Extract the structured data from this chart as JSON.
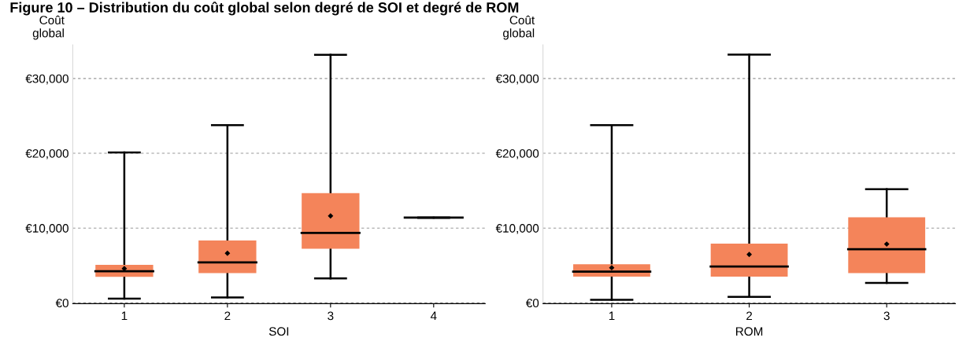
{
  "chart_data": [
    {
      "type": "box",
      "title": "Figure 10 – Distribution du coût global selon degré de SOI et degré de ROM",
      "xlabel": "SOI",
      "ylabel": "Coût\nglobal",
      "categories": [
        "1",
        "2",
        "3",
        "4"
      ],
      "colors": [
        "#f4845a",
        "#f4845a",
        "#f4845a",
        "#000000"
      ],
      "ylim": [
        -100,
        34500
      ],
      "yticks": [
        {
          "value": 0,
          "label": "€0"
        },
        {
          "value": 10000,
          "label": "€10,000"
        },
        {
          "value": 20000,
          "label": "€20,000"
        },
        {
          "value": 30000,
          "label": "€30,000"
        }
      ],
      "grid": "y",
      "marker": "diamond",
      "boxes": [
        {
          "low": 570,
          "q1": 3480,
          "median": 4240,
          "q3": 5080,
          "high": 20100,
          "mean": 4580
        },
        {
          "low": 720,
          "q1": 3980,
          "median": 5420,
          "q3": 8330,
          "high": 23750,
          "mean": 6630
        },
        {
          "low": 3260,
          "q1": 7230,
          "median": 9360,
          "q3": 14660,
          "high": 33180,
          "mean": 11630
        },
        {
          "low": 11400,
          "q1": 11400,
          "median": 11400,
          "q3": 11400,
          "high": 11400
        }
      ]
    },
    {
      "type": "box",
      "xlabel": "ROM",
      "ylabel": "Coût\nglobal",
      "categories": [
        "1",
        "2",
        "3"
      ],
      "color": "#f4845a",
      "ylim": [
        -100,
        34500
      ],
      "yticks": [
        {
          "value": 0,
          "label": "€0"
        },
        {
          "value": 10000,
          "label": "€10,000"
        },
        {
          "value": 20000,
          "label": "€20,000"
        },
        {
          "value": 30000,
          "label": "€30,000"
        }
      ],
      "grid": "y",
      "marker": "diamond",
      "boxes": [
        {
          "low": 410,
          "q1": 3500,
          "median": 4170,
          "q3": 5150,
          "high": 23760,
          "mean": 4700
        },
        {
          "low": 790,
          "q1": 3500,
          "median": 4850,
          "q3": 7930,
          "high": 33200,
          "mean": 6470
        },
        {
          "low": 2670,
          "q1": 3980,
          "median": 7180,
          "q3": 11430,
          "high": 15190,
          "mean": 7860
        }
      ]
    }
  ]
}
